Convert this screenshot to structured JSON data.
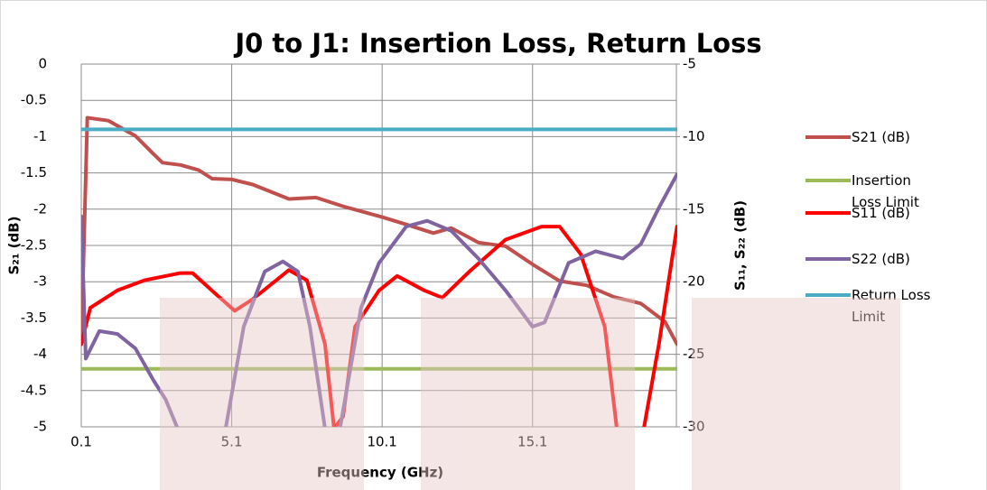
{
  "chart_data": {
    "type": "line",
    "title": "J0 to J1: Insertion Loss, Return Loss",
    "x_label": "Frequency (GHz)",
    "y_label": "S₂₁ (dB)",
    "y2_label": "S₁₁, S₂₂ (dB)",
    "xlim": [
      0.1,
      20
    ],
    "xticks": [
      0.1,
      5.1,
      10.1,
      15.1
    ],
    "ylim": [
      -5,
      0
    ],
    "yticks": [
      0,
      -0.5,
      -1,
      -1.5,
      -2,
      -2.5,
      -3,
      -3.5,
      -4,
      -4.5,
      -5
    ],
    "y2lim": [
      -30,
      -5
    ],
    "y2ticks": [
      -5,
      -10,
      -15,
      -20,
      -25,
      -30
    ],
    "grid": true,
    "legend": "right",
    "series": [
      {
        "name": "S21 (dB)",
        "color": "#c0504d",
        "x": [
          0.1,
          0.3,
          1.0,
          1.9,
          2.5,
          2.8,
          3.4,
          4.0,
          4.45,
          5.1,
          5.8,
          6.4,
          7.0,
          7.9,
          8.8,
          10.1,
          10.9,
          11.8,
          12.4,
          13.3,
          14.2,
          15.1,
          16.0,
          16.9,
          17.8,
          18.7,
          19.5,
          19.9
        ],
        "values": [
          -3.86,
          -0.74,
          -0.78,
          -0.99,
          -1.24,
          -1.36,
          -1.39,
          -1.46,
          -1.58,
          -1.59,
          -1.66,
          -1.76,
          -1.86,
          -1.84,
          -1.96,
          -2.11,
          -2.21,
          -2.33,
          -2.26,
          -2.46,
          -2.51,
          -2.76,
          -2.99,
          -3.05,
          -3.21,
          -3.3,
          -3.55,
          -3.86
        ]
      },
      {
        "name": "Insertion Loss Limit",
        "color": "#9bbb59",
        "x": [
          0.1,
          19.9
        ],
        "values": [
          -4.2,
          -4.2
        ]
      },
      {
        "name": "S11 (dB)",
        "color": "#ff0000",
        "axis": "y2",
        "x": [
          0.1,
          0.4,
          1.3,
          2.2,
          3.4,
          3.8,
          4.6,
          5.2,
          5.8,
          7.0,
          7.6,
          8.2,
          8.5,
          8.8,
          9.2,
          10.0,
          10.6,
          11.5,
          12.1,
          13.0,
          14.2,
          15.4,
          16.0,
          16.7,
          17.5,
          17.9,
          18.4,
          18.8,
          19.3,
          19.9
        ],
        "values": [
          -24.3,
          -21.8,
          -20.6,
          -19.9,
          -19.4,
          -19.4,
          -20.9,
          -22.0,
          -21.2,
          -19.2,
          -19.9,
          -24.3,
          -30.1,
          -29.3,
          -23.1,
          -20.6,
          -19.6,
          -20.6,
          -21.1,
          -19.3,
          -17.1,
          -16.2,
          -16.2,
          -18.1,
          -23.1,
          -30.1,
          -35,
          -30.1,
          -24.3,
          -16.2
        ]
      },
      {
        "name": "S22 (dB)",
        "color": "#8064a2",
        "axis": "y2",
        "x": [
          0.1,
          0.25,
          0.7,
          1.3,
          1.9,
          2.5,
          2.9,
          3.3,
          4.2,
          4.9,
          5.5,
          6.2,
          6.8,
          7.3,
          7.7,
          8.2,
          8.5,
          8.7,
          9.4,
          10.0,
          10.9,
          11.6,
          12.4,
          13.3,
          14.2,
          15.1,
          15.5,
          16.3,
          17.2,
          18.1,
          18.7,
          19.3,
          19.9
        ],
        "values": [
          -15.5,
          -25.3,
          -23.4,
          -23.6,
          -24.6,
          -26.8,
          -28.1,
          -30.1,
          -35,
          -30.1,
          -23.1,
          -19.3,
          -18.6,
          -19.3,
          -23.1,
          -30.1,
          -33,
          -30.1,
          -21.8,
          -18.7,
          -16.2,
          -15.8,
          -16.5,
          -18.4,
          -20.6,
          -23.1,
          -22.8,
          -18.7,
          -17.9,
          -18.4,
          -17.4,
          -14.9,
          -12.6
        ]
      },
      {
        "name": "Return Loss Limit",
        "color": "#4bacc6",
        "axis": "y2",
        "x": [
          0.1,
          19.9
        ],
        "values": [
          -9.5,
          -9.5
        ]
      }
    ]
  }
}
